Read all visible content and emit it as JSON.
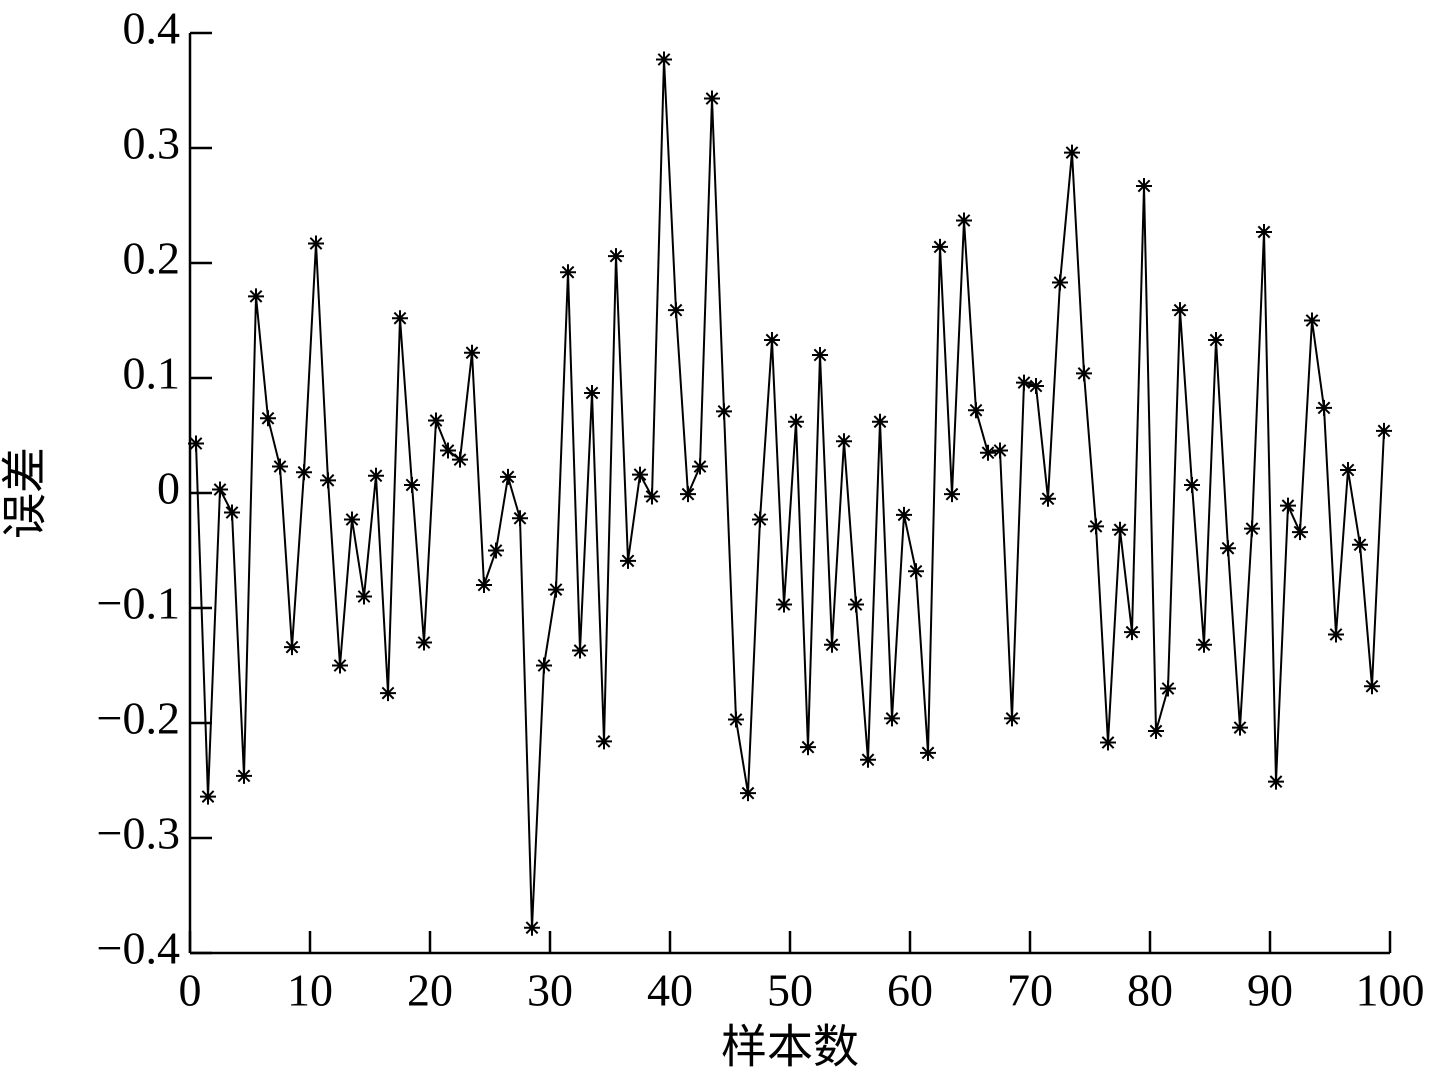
{
  "chart_data": {
    "type": "line",
    "x_label": "样本数",
    "y_label": "误差",
    "x": [
      0.5,
      1.5,
      2.5,
      3.5,
      4.5,
      5.5,
      6.5,
      7.5,
      8.5,
      9.5,
      10.5,
      11.5,
      12.5,
      13.5,
      14.5,
      15.5,
      16.5,
      17.5,
      18.5,
      19.5,
      20.5,
      21.5,
      22.5,
      23.5,
      24.5,
      25.5,
      26.5,
      27.5,
      28.5,
      29.5,
      30.5,
      31.5,
      32.5,
      33.5,
      34.5,
      35.5,
      36.5,
      37.5,
      38.5,
      39.5,
      40.5,
      41.5,
      42.5,
      43.5,
      44.5,
      45.5,
      46.5,
      47.5,
      48.5,
      49.5,
      50.5,
      51.5,
      52.5,
      53.5,
      54.5,
      55.5,
      56.5,
      57.5,
      58.5,
      59.5,
      60.5,
      61.5,
      62.5,
      63.5,
      64.5,
      65.5,
      66.5,
      67.5,
      68.5,
      69.5,
      70.5,
      71.5,
      72.5,
      73.5,
      74.5,
      75.5,
      76.5,
      77.5,
      78.5,
      79.5,
      80.5,
      81.5,
      82.5,
      83.5,
      84.5,
      85.5,
      86.5,
      87.5,
      88.5,
      89.5,
      90.5,
      91.5,
      92.5,
      93.5,
      94.5,
      95.5,
      96.5,
      97.5,
      98.5,
      99.5
    ],
    "series": [
      {
        "color": "#000000",
        "values": [
          0.043,
          -0.264,
          0.003,
          -0.017,
          -0.246,
          0.171,
          0.065,
          0.023,
          -0.134,
          0.018,
          0.217,
          0.011,
          -0.15,
          -0.023,
          -0.09,
          0.015,
          -0.174,
          0.152,
          0.007,
          -0.13,
          0.063,
          0.037,
          0.029,
          0.122,
          -0.08,
          -0.05,
          0.014,
          -0.022,
          -0.378,
          -0.15,
          -0.084,
          0.192,
          -0.137,
          0.087,
          -0.216,
          0.206,
          -0.059,
          0.016,
          -0.003,
          0.377,
          0.159,
          -0.001,
          0.023,
          0.343,
          0.071,
          -0.197,
          -0.261,
          -0.023,
          0.133,
          -0.097,
          0.062,
          -0.221,
          0.12,
          -0.132,
          0.045,
          -0.097,
          -0.232,
          0.062,
          -0.196,
          -0.019,
          -0.068,
          -0.226,
          0.214,
          -0.001,
          0.237,
          0.072,
          0.035,
          0.037,
          -0.196,
          0.096,
          0.093,
          -0.005,
          0.183,
          0.296,
          0.104,
          -0.029,
          -0.217,
          -0.032,
          -0.121,
          0.267,
          -0.207,
          -0.17,
          0.159,
          0.007,
          -0.132,
          0.133,
          -0.048,
          -0.204,
          -0.031,
          0.227,
          -0.251,
          -0.011,
          -0.034,
          0.15,
          0.074,
          -0.123,
          0.02,
          -0.045,
          -0.168,
          0.054
        ]
      }
    ],
    "xlim": [
      0,
      100
    ],
    "xticks": [
      0,
      10,
      20,
      30,
      40,
      50,
      60,
      70,
      80,
      90,
      100
    ],
    "ylim": [
      -0.4,
      0.4
    ],
    "yticks": [
      {
        "value": -0.4,
        "label": "−0.4"
      },
      {
        "value": -0.3,
        "label": "−0.3"
      },
      {
        "value": -0.2,
        "label": "−0.2"
      },
      {
        "value": -0.1,
        "label": "−0.1"
      },
      0,
      0.1,
      0.2,
      0.3,
      0.4
    ]
  }
}
